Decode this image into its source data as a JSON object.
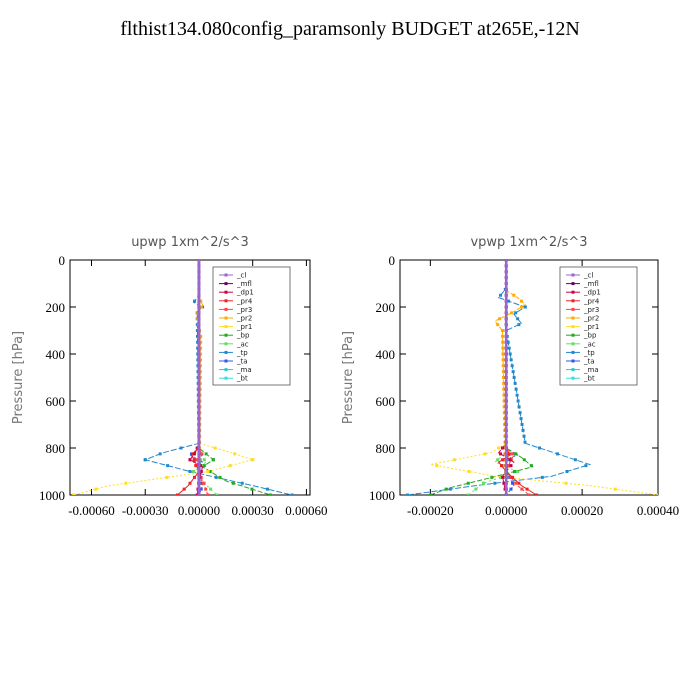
{
  "title": "flthist134.080config_paramsonly  BUDGET at265E,-12N",
  "legend_names": [
    "_cl",
    "_mfl",
    "_dp1",
    "_pr4",
    "_pr3",
    "_pr2",
    "_pr1",
    "_bp",
    "_ac",
    "_tp",
    "_ta",
    "_ma",
    "_bt"
  ],
  "legend_colors": [
    "#9966cc",
    "#660066",
    "#cc0044",
    "#ee2222",
    "#ff4444",
    "#ffaa00",
    "#ffdd22",
    "#22aa22",
    "#66dd66",
    "#2288cc",
    "#3355ee",
    "#22cccc",
    "#33dddd"
  ],
  "chart_data": [
    {
      "type": "line",
      "title": "upwp   1xm^2/s^3",
      "ylabel": "Pressure [hPa]",
      "xlim": [
        -0.00072,
        0.00062
      ],
      "ylim": [
        1000,
        0
      ],
      "xticks": [
        -0.0006,
        -0.0003,
        0.0,
        0.0003,
        0.0006
      ],
      "xtick_labels": [
        "-0.00060",
        "-0.00030",
        "0.00000",
        "0.00030",
        "0.00060"
      ],
      "yticks": [
        0,
        200,
        400,
        600,
        800,
        1000
      ],
      "ytick_labels": [
        "0",
        "200",
        "400",
        "600",
        "800",
        "1000"
      ],
      "series": [
        {
          "name": "_cl",
          "x": [
            0,
            0,
            0,
            0,
            0,
            0,
            0
          ],
          "y": [
            0,
            200,
            400,
            600,
            800,
            900,
            1000
          ]
        },
        {
          "name": "_mfl",
          "x": [
            0,
            0,
            0,
            0,
            0,
            0,
            0
          ],
          "y": [
            0,
            200,
            400,
            600,
            800,
            900,
            1000
          ]
        },
        {
          "name": "_dp1",
          "x": [
            0,
            0,
            -2e-05,
            -5e-05,
            2e-05,
            0,
            -1e-05
          ],
          "y": [
            0,
            780,
            820,
            850,
            880,
            940,
            1000
          ]
        },
        {
          "name": "_pr4",
          "x": [
            0,
            0,
            -4e-05,
            -2e-05,
            0,
            -6e-05,
            -0.00012
          ],
          "y": [
            0,
            800,
            830,
            860,
            900,
            960,
            1000
          ]
        },
        {
          "name": "_pr3",
          "x": [
            0,
            0,
            2e-05,
            -3e-05,
            0,
            3e-05,
            5e-05
          ],
          "y": [
            0,
            800,
            830,
            860,
            900,
            960,
            1000
          ]
        },
        {
          "name": "_pr2",
          "x": [
            0,
            0,
            2e-05,
            -1e-05,
            0,
            1e-05,
            0
          ],
          "y": [
            0,
            160,
            190,
            230,
            290,
            320,
            1000
          ]
        },
        {
          "name": "_pr1",
          "x": [
            0,
            0,
            0.00018,
            0.0003,
            5e-05,
            -0.0005,
            -0.0007
          ],
          "y": [
            0,
            780,
            820,
            850,
            900,
            960,
            1000
          ]
        },
        {
          "name": "_bp",
          "x": [
            0,
            0,
            8e-05,
            2e-05,
            0.00015,
            0.0004
          ],
          "y": [
            0,
            800,
            850,
            880,
            940,
            1000
          ]
        },
        {
          "name": "_ac",
          "x": [
            0,
            0,
            4e-05,
            -3e-05,
            3e-05,
            0.0001
          ],
          "y": [
            0,
            820,
            860,
            900,
            950,
            1000
          ]
        },
        {
          "name": "_tp",
          "x": [
            0,
            0,
            -3e-05,
            2e-05,
            -1e-05,
            0,
            -0.0002,
            -0.0003,
            -5e-05,
            0.0003,
            0.00052
          ],
          "y": [
            0,
            150,
            180,
            200,
            220,
            780,
            820,
            850,
            900,
            960,
            1000
          ]
        },
        {
          "name": "_ta",
          "x": [
            0,
            0,
            -5e-05,
            2e-05,
            0,
            2e-05,
            0
          ],
          "y": [
            0,
            800,
            830,
            860,
            900,
            960,
            1000
          ]
        },
        {
          "name": "_ma",
          "x": [
            0,
            0,
            1e-05,
            0,
            0
          ],
          "y": [
            0,
            820,
            860,
            900,
            1000
          ]
        },
        {
          "name": "_bt",
          "x": [
            0,
            0,
            0,
            0
          ],
          "y": [
            0,
            500,
            900,
            1000
          ]
        }
      ]
    },
    {
      "type": "line",
      "title": "vpwp   1xm^2/s^3",
      "ylabel": "Pressure [hPa]",
      "xlim": [
        -0.00028,
        0.0004
      ],
      "ylim": [
        1000,
        0
      ],
      "xticks": [
        -0.0002,
        0.0,
        0.0002,
        0.0004
      ],
      "xtick_labels": [
        "-0.00020",
        "0.00000",
        "0.00020",
        "0.00040"
      ],
      "yticks": [
        0,
        200,
        400,
        600,
        800,
        1000
      ],
      "ytick_labels": [
        "0",
        "200",
        "400",
        "600",
        "800",
        "1000"
      ],
      "series": [
        {
          "name": "_cl",
          "x": [
            0,
            0,
            0,
            0,
            0,
            0,
            0
          ],
          "y": [
            0,
            200,
            400,
            600,
            800,
            900,
            1000
          ]
        },
        {
          "name": "_mfl",
          "x": [
            0,
            0,
            0,
            0,
            0,
            0,
            0
          ],
          "y": [
            0,
            200,
            400,
            600,
            800,
            900,
            1000
          ]
        },
        {
          "name": "_dp1",
          "x": [
            0,
            0,
            -2e-05,
            2e-05,
            -1e-05,
            0
          ],
          "y": [
            0,
            780,
            820,
            860,
            920,
            1000
          ]
        },
        {
          "name": "_pr4",
          "x": [
            0,
            0,
            1e-05,
            -2e-05,
            0,
            4e-05,
            8e-05
          ],
          "y": [
            0,
            800,
            830,
            860,
            900,
            960,
            1000
          ]
        },
        {
          "name": "_pr3",
          "x": [
            0,
            0,
            2e-05,
            1e-05,
            0,
            3e-05,
            6e-05
          ],
          "y": [
            0,
            800,
            830,
            860,
            900,
            960,
            1000
          ]
        },
        {
          "name": "_pr2",
          "x": [
            0,
            0,
            3e-05,
            5e-05,
            2e-05,
            -3e-05,
            -1e-05,
            0
          ],
          "y": [
            0,
            130,
            160,
            190,
            220,
            260,
            300,
            1000
          ]
        },
        {
          "name": "_pr1",
          "x": [
            0,
            0,
            -4e-05,
            -0.0002,
            -3e-05,
            0.00022,
            0.0004
          ],
          "y": [
            0,
            780,
            820,
            870,
            920,
            960,
            1000
          ]
        },
        {
          "name": "_bp",
          "x": [
            0,
            0,
            4e-05,
            7e-05,
            -5e-05,
            -0.00015,
            -0.0002
          ],
          "y": [
            0,
            800,
            840,
            880,
            930,
            970,
            1000
          ]
        },
        {
          "name": "_ac",
          "x": [
            0,
            0,
            -3e-05,
            3e-05,
            -6e-05,
            -0.0001
          ],
          "y": [
            0,
            820,
            860,
            900,
            950,
            1000
          ]
        },
        {
          "name": "_tp",
          "x": [
            0,
            0,
            -2e-05,
            5e-05,
            2e-05,
            4e-05,
            0,
            5e-05,
            0.00022,
            0.00012,
            -8e-05,
            -0.00026
          ],
          "y": [
            0,
            120,
            160,
            200,
            230,
            270,
            300,
            780,
            870,
            920,
            960,
            1000
          ]
        },
        {
          "name": "_ta",
          "x": [
            0,
            0,
            3e-05,
            -2e-05,
            0,
            2e-05,
            0
          ],
          "y": [
            0,
            800,
            830,
            860,
            900,
            960,
            1000
          ]
        },
        {
          "name": "_ma",
          "x": [
            0,
            0,
            1e-05,
            0,
            0
          ],
          "y": [
            0,
            820,
            860,
            900,
            1000
          ]
        },
        {
          "name": "_bt",
          "x": [
            0,
            0,
            0,
            0
          ],
          "y": [
            0,
            500,
            900,
            1000
          ]
        }
      ]
    }
  ]
}
